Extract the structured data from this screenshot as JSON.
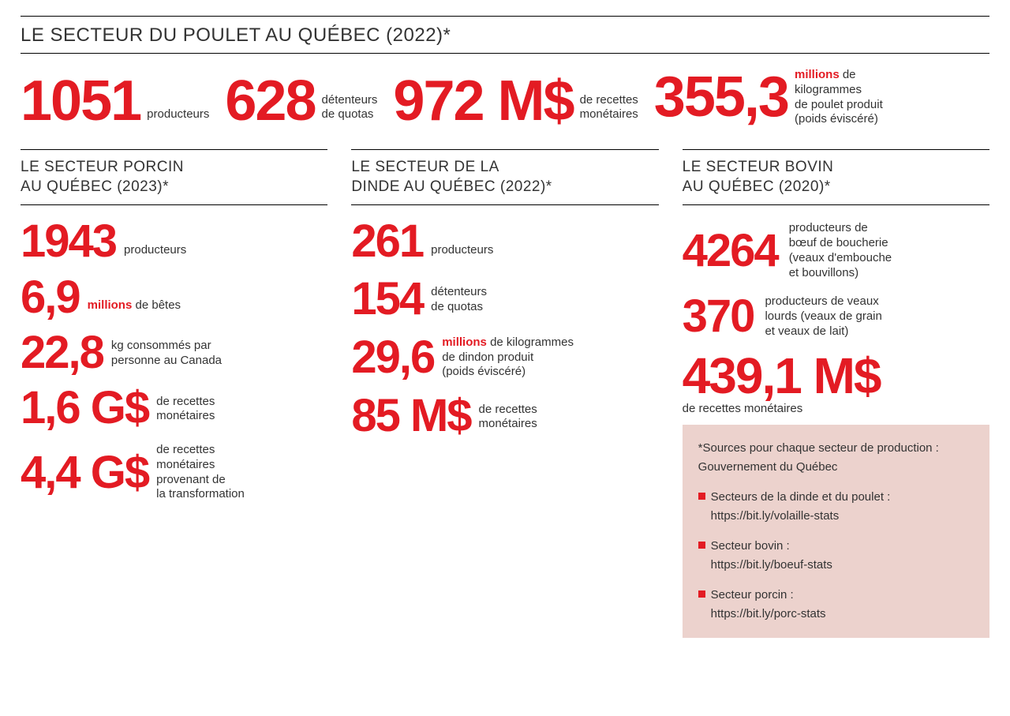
{
  "colors": {
    "accent": "#e31b23",
    "text": "#333333",
    "bg": "#ffffff",
    "sources_bg": "#ecd2cd"
  },
  "poulet": {
    "title": "LE SECTEUR DU POULET AU QUÉBEC (2022)*",
    "stats": [
      {
        "value": "1051",
        "label": "producteurs"
      },
      {
        "value": "628",
        "label_html": "détenteurs<br>de quotas"
      },
      {
        "value": "972 M$",
        "label_html": "de recettes<br>monétaires"
      },
      {
        "value": "355,3",
        "label_html": "<span class='redbold'>millions</span> de<br>kilogrammes<br>de poulet produit<br>(poids éviscéré)"
      }
    ]
  },
  "porcin": {
    "title": "LE SECTEUR PORCIN\nAU QUÉBEC (2023)*",
    "stats": [
      {
        "value": "1943",
        "label": "producteurs"
      },
      {
        "value": "6,9",
        "label_html": "<span class='redbold'>millions</span> de bêtes"
      },
      {
        "value": "22,8",
        "label_html": "kg consommés par<br>personne au Canada"
      },
      {
        "value": "1,6 G$",
        "label_html": "de recettes<br>monétaires"
      },
      {
        "value": "4,4 G$",
        "label_html": "de recettes<br>monétaires<br>provenant de<br>la transformation"
      }
    ]
  },
  "dinde": {
    "title": "LE SECTEUR DE LA\nDINDE AU QUÉBEC (2022)*",
    "stats": [
      {
        "value": "261",
        "label": "producteurs"
      },
      {
        "value": "154",
        "label_html": "détenteurs<br>de quotas"
      },
      {
        "value": "29,6",
        "label_html": "<span class='redbold'>millions</span> de kilogrammes<br>de dindon produit<br>(poids éviscéré)"
      },
      {
        "value": "85 M$",
        "label_html": "de recettes<br>monétaires"
      }
    ]
  },
  "bovin": {
    "title": "LE SECTEUR BOVIN\nAU QUÉBEC (2020)*",
    "stats": [
      {
        "value": "4264",
        "label_html": "producteurs de<br>bœuf de boucherie<br>(veaux d'embouche<br>et bouvillons)"
      },
      {
        "value": "370",
        "label_html": "producteurs de veaux<br>lourds (veaux de grain<br>et veaux de lait)"
      },
      {
        "value": "439,1 M$",
        "sub": "de recettes monétaires"
      }
    ]
  },
  "sources": {
    "head": "*Sources pour chaque secteur de production : Gouvernement du Québec",
    "items": [
      {
        "t": "Secteurs de la dinde et du poulet :",
        "u": "https://bit.ly/volaille-stats"
      },
      {
        "t": "Secteur bovin :",
        "u": "https://bit.ly/boeuf-stats"
      },
      {
        "t": "Secteur porcin :",
        "u": "https://bit.ly/porc-stats"
      }
    ]
  }
}
